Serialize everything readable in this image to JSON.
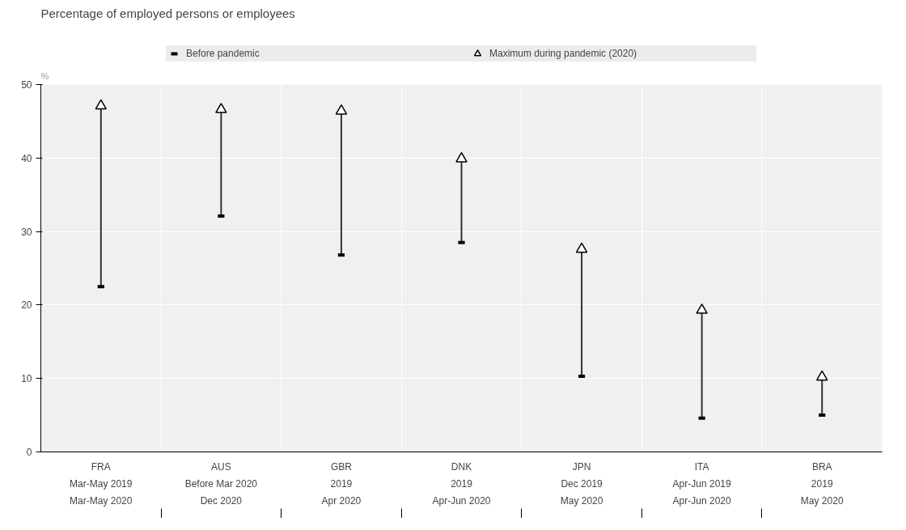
{
  "chart_data": {
    "type": "scatter",
    "title": "Percentage of employed persons or employees",
    "annotations": [
      "%"
    ],
    "categories": [
      "FRA\nMar-May 2019\nMar-May 2020",
      "AUS\nBefore Mar 2020\nDec 2020",
      "GBR\n2019\nApr 2020",
      "DNK\n2019\nApr-Jun 2020",
      "JPN\nDec 2019\nMay 2020",
      "ITA\nApr-Jun 2019\nApr-Jun 2020",
      "BRA\n2019\nMay 2020"
    ],
    "series": [
      {
        "name": "Before pandemic",
        "color": "#000000",
        "values": [
          22.5,
          32.1,
          26.8,
          28.5,
          10.3,
          4.6,
          5.0
        ]
      },
      {
        "name": "Maximum during pandemic (2020)",
        "color": "#000000",
        "marker": "triangle",
        "values": [
          47.1,
          46.6,
          46.4,
          39.9,
          27.6,
          19.3,
          10.2
        ]
      }
    ],
    "ylim": [
      0,
      50
    ],
    "yticks": [
      0,
      10,
      20,
      30,
      40,
      50
    ],
    "grid": true,
    "legend": "top"
  }
}
